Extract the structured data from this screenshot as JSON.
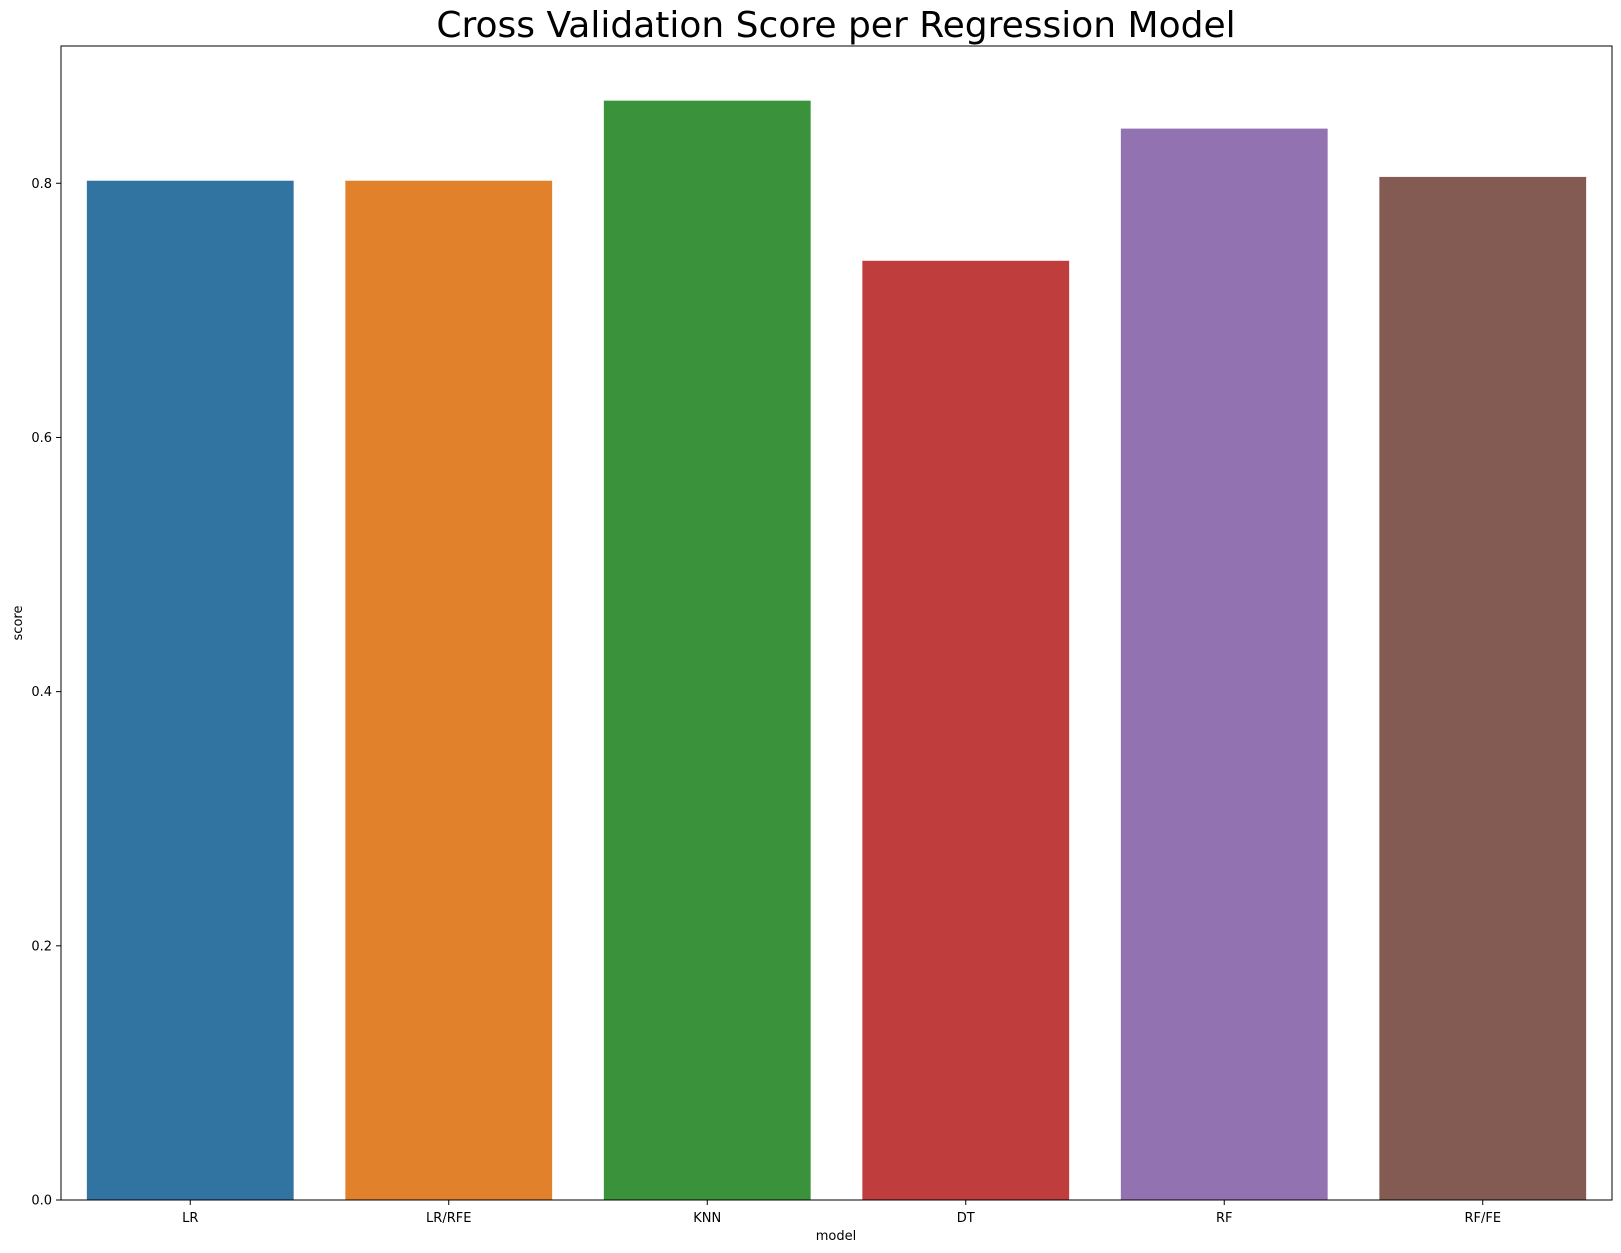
{
  "chart_data": {
    "type": "bar",
    "title": "Cross Validation Score per Regression Model",
    "xlabel": "model",
    "ylabel": "score",
    "categories": [
      "LR",
      "LR/RFE",
      "KNN",
      "DT",
      "RF",
      "RF/FE"
    ],
    "values": [
      0.802,
      0.802,
      0.865,
      0.739,
      0.843,
      0.805
    ],
    "colors": [
      "#3274a1",
      "#e1812c",
      "#3a923a",
      "#c03d3e",
      "#9372b2",
      "#845b53"
    ],
    "ylim": [
      0,
      0.908
    ],
    "yticks": [
      0.0,
      0.2,
      0.4,
      0.6,
      0.8
    ],
    "ytick_labels": [
      "0.0",
      "0.2",
      "0.4",
      "0.6",
      "0.8"
    ],
    "grid": false,
    "legend": "none"
  }
}
